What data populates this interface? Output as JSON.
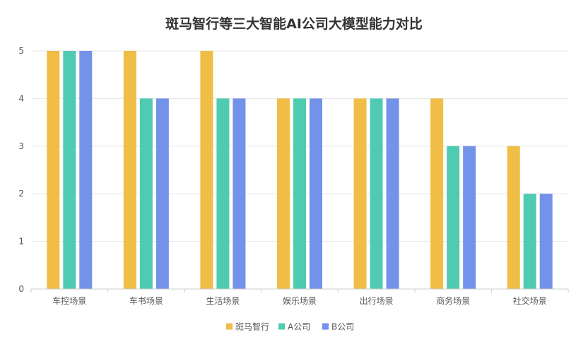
{
  "chart_data": {
    "type": "bar",
    "title": "斑马智行等三大智能AI公司大模型能力对比",
    "categories": [
      "车控场景",
      "车书场景",
      "生活场景",
      "娱乐场景",
      "出行场景",
      "商务场景",
      "社交场景"
    ],
    "series": [
      {
        "name": "斑马智行",
        "color": "#F0BD46",
        "values": [
          5,
          5,
          5,
          4,
          4,
          4,
          3
        ]
      },
      {
        "name": "A公司",
        "color": "#4FCBB2",
        "values": [
          5,
          4,
          4,
          4,
          4,
          3,
          2
        ]
      },
      {
        "name": "B公司",
        "color": "#7392EA",
        "values": [
          5,
          4,
          4,
          4,
          4,
          3,
          2
        ]
      }
    ],
    "yticks": [
      0,
      1,
      2,
      3,
      4,
      5
    ],
    "ylim": [
      0,
      5
    ],
    "xlabel": "",
    "ylabel": "",
    "grid": true,
    "legend_position": "bottom"
  }
}
